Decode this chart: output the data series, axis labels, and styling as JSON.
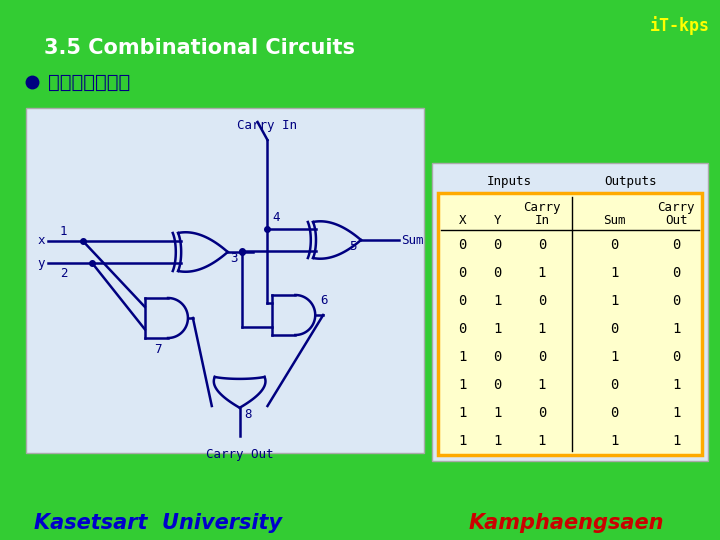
{
  "title": "3.5 Combinational Circuits",
  "subtitle": "ทำไดดงน",
  "bg_color": "#33cc33",
  "title_color": "#ffffff",
  "subtitle_color": "#000080",
  "itkps_color": "#ffff00",
  "circuit_bg": "#dce8f5",
  "table_outer_bg": "#dce8f5",
  "table_bg": "#ffffcc",
  "table_border": "#ffaa00",
  "gate_color": "#000080",
  "wire_color": "#000080",
  "inputs_header": "Inputs",
  "outputs_header": "Outputs",
  "carry_in_label": "Carry In",
  "carry_out_label": "Carry Out",
  "sum_label": "Sum",
  "table_data": [
    [
      0,
      0,
      0,
      0,
      0
    ],
    [
      0,
      0,
      1,
      1,
      0
    ],
    [
      0,
      1,
      0,
      1,
      0
    ],
    [
      0,
      1,
      1,
      0,
      1
    ],
    [
      1,
      0,
      0,
      1,
      0
    ],
    [
      1,
      0,
      1,
      0,
      1
    ],
    [
      1,
      1,
      0,
      0,
      1
    ],
    [
      1,
      1,
      1,
      1,
      1
    ]
  ],
  "footer_left": "Kasetsart  University",
  "footer_right": "Kamphaengsaen",
  "footer_left_color": "#0000cc",
  "footer_right_color": "#cc0000"
}
